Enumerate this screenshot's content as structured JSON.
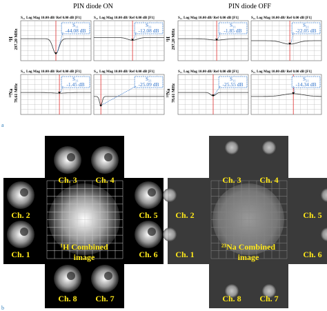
{
  "header": {
    "left": "PIN diode ON",
    "right": "PIN diode OFF"
  },
  "row_labels": [
    {
      "nucleus": "¹H",
      "freq": "297.20 MHz"
    },
    {
      "nucleus": "²³Na",
      "freq": "78.61 MHz"
    }
  ],
  "plots": [
    {
      "param": "S₁₁",
      "header": "Log Mag 10.00 dB/ Ref 0.00 dB [F1]",
      "marker": "S₁₁",
      "value": "-44.08 dB"
    },
    {
      "param": "S₂₁",
      "header": "Log Mag 10.00 dB/ Ref 0.00 dB [F1]",
      "marker": "S₂₁",
      "value": "-12.08 dB"
    },
    {
      "param": "S₁₁",
      "header": "Log Mag 10.00 dB/ Ref 0.00 dB [F1]",
      "marker": "S₁₁",
      "value": "-1.85 dB"
    },
    {
      "param": "S₂₁",
      "header": "Log Mag 10.00 dB/ Ref 0.00 dB [F1]",
      "marker": "S₂₁",
      "value": "-22.05 dB"
    },
    {
      "param": "S₁₁",
      "header": "Log Mag 10.00 dB/ Ref 0.00 dB [F1]",
      "marker": "S₁₁",
      "value": "-1.45 dB"
    },
    {
      "param": "S₂₁",
      "header": "Log Mag 10.00 dB/ Ref 0.00 dB [F1]",
      "marker": "S₂₁",
      "value": "-25.09 dB"
    },
    {
      "param": "S₁₁",
      "header": "Log Mag 10.00 dB/ Ref 0.00 dB [F1]",
      "marker": "S₁₁",
      "value": "-25.55 dB"
    },
    {
      "param": "S₂₁",
      "header": "Log Mag 10.00 dB/ Ref 0.00 dB [F1]",
      "marker": "S₂₁",
      "value": "-14.34 dB"
    }
  ],
  "panel_labels": [
    "a",
    "b"
  ],
  "images": [
    {
      "channels": [
        "Ch. 1",
        "Ch. 2",
        "Ch. 3",
        "Ch. 4",
        "Ch. 5",
        "Ch. 6",
        "Ch. 7",
        "Ch. 8"
      ],
      "caption": [
        "¹H Combined",
        "image"
      ]
    },
    {
      "channels": [
        "Ch. 1",
        "Ch. 2",
        "Ch. 3",
        "Ch. 4",
        "Ch. 5",
        "Ch. 6",
        "Ch. 7",
        "Ch. 8"
      ],
      "caption": [
        "²³Na Combined",
        "image"
      ]
    }
  ]
}
